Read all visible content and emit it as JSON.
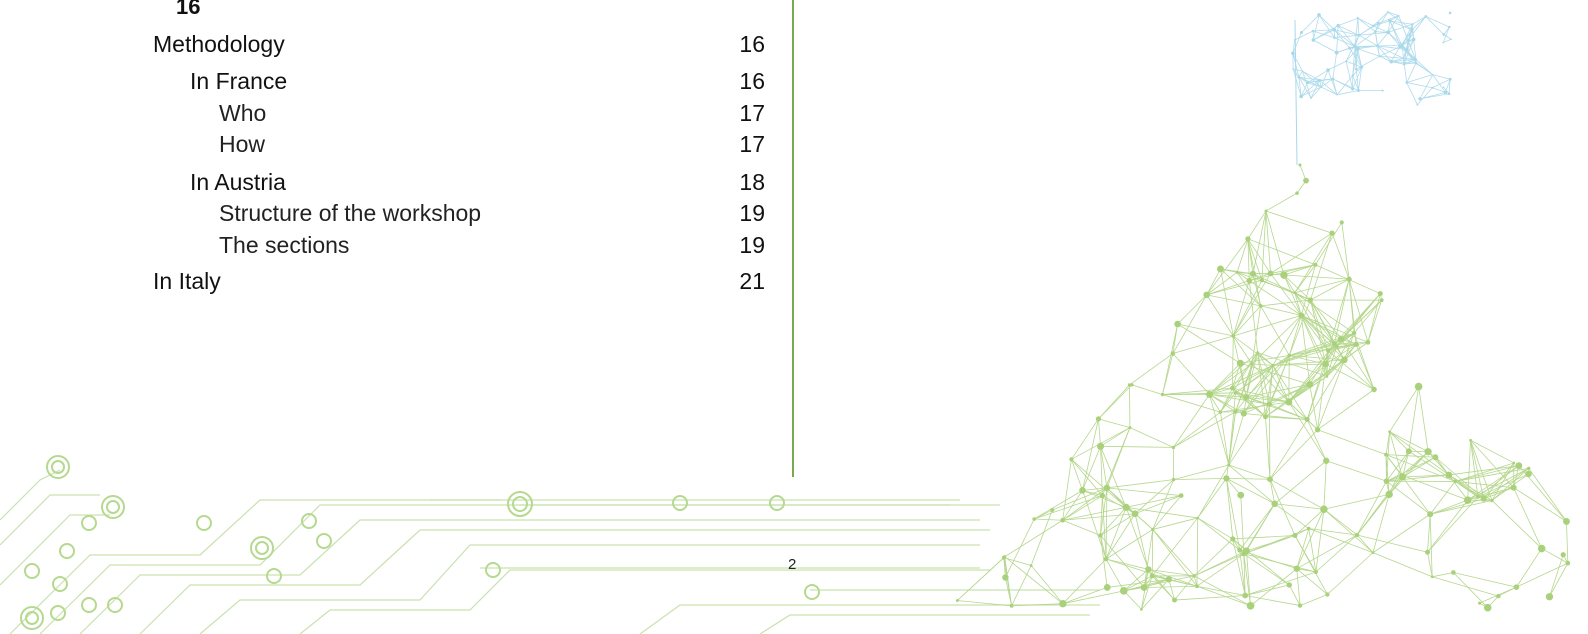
{
  "toc": {
    "carry_over_page": "16",
    "entries": [
      {
        "label": "Methodology",
        "page": "16"
      },
      {
        "label": "In France",
        "page": "16"
      },
      {
        "label": "Who",
        "page": "17"
      },
      {
        "label": "How",
        "page": "17"
      },
      {
        "label": "In Austria",
        "page": "18"
      },
      {
        "label": "Structure of the workshop",
        "page": "19"
      },
      {
        "label": "The sections",
        "page": "19"
      },
      {
        "label": "In Italy",
        "page": "21"
      }
    ]
  },
  "footer": {
    "page_number": "2"
  },
  "colors": {
    "accent_green": "#7aa84f",
    "mesh_green": "#a9d07a",
    "flag_blue": "#a8d8ea"
  }
}
